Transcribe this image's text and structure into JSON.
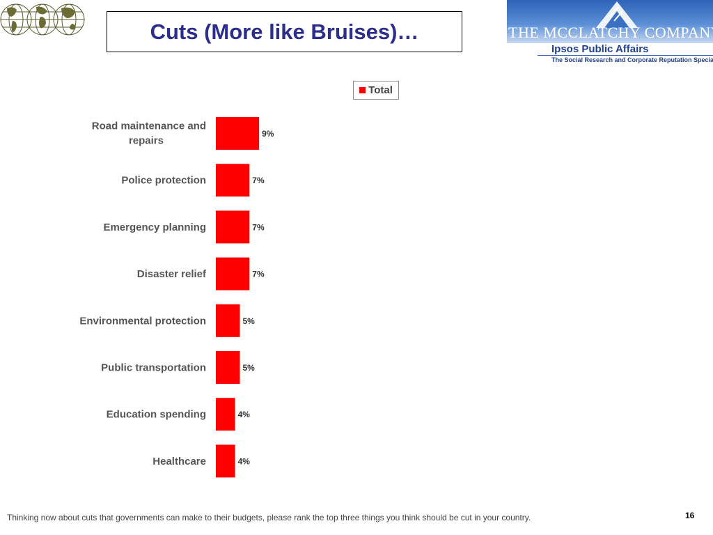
{
  "slide": {
    "title": "Cuts (More like Bruises)…",
    "footnote": "Thinking now about cuts that governments can make to their budgets, please rank the top three things you think should be cut in your country.",
    "page_number": "16"
  },
  "branding": {
    "company": "THE MCCLATCHY COMPANY",
    "firm": "Ipsos Public Affairs",
    "tagline": "The Social Research and Corporate Reputation Specialists"
  },
  "chart_data": {
    "type": "bar",
    "orientation": "horizontal",
    "title": "",
    "xlabel": "",
    "ylabel": "",
    "categories": [
      "Road maintenance and repairs",
      "Police protection",
      "Emergency planning",
      "Disaster relief",
      "Environmental protection",
      "Public transportation",
      "Education spending",
      "Healthcare"
    ],
    "series": [
      {
        "name": "Total",
        "color": "#ff0000",
        "values": [
          9,
          7,
          7,
          7,
          5,
          5,
          4,
          4
        ],
        "labels": [
          "9%",
          "7%",
          "7%",
          "7%",
          "5%",
          "5%",
          "4%",
          "4%"
        ]
      }
    ],
    "xlim": [
      0,
      100
    ],
    "grid": false,
    "legend_position": "top-right"
  }
}
